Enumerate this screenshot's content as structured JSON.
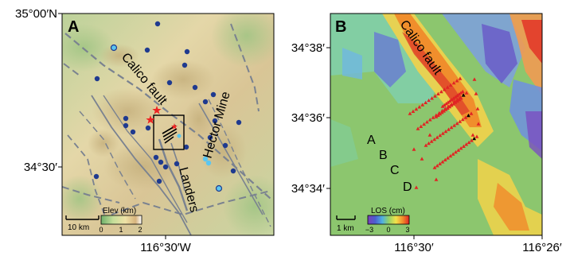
{
  "panel_a": {
    "tag": "A",
    "lat_top": "35°00′N",
    "lat_mid": "34°30′",
    "lon_bottom": "116°30′W",
    "fault_labels": [
      "Calico fault",
      "Hector Mine",
      "Landers"
    ],
    "legend": {
      "title": "Elev (km)",
      "ticks": [
        "0",
        "1",
        "2"
      ]
    },
    "scale": "10 km"
  },
  "panel_b": {
    "tag": "B",
    "lat_labels": [
      "34°38′",
      "34°36′",
      "34°34′"
    ],
    "lon_labels": [
      "116°30′",
      "116°26′"
    ],
    "fault_label": "Calico fault",
    "profile_labels": [
      "A",
      "B",
      "C",
      "D"
    ],
    "legend": {
      "title": "LOS (cm)",
      "ticks": [
        "−3",
        "0",
        "3"
      ]
    },
    "scale": "1 km"
  },
  "colors": {
    "terrain_low": "#b9d49a",
    "terrain_mid": "#e8dcae",
    "terrain_high": "#d7c08e",
    "quake_dot": "#1f3a8f",
    "cyan_dot": "#5bc6f0",
    "star": "#ee2222",
    "fault_gray": "#7a8290",
    "los_neg": "#7b5fc4",
    "los_zero": "#8fc66a",
    "los_pos": "#e2452b"
  }
}
